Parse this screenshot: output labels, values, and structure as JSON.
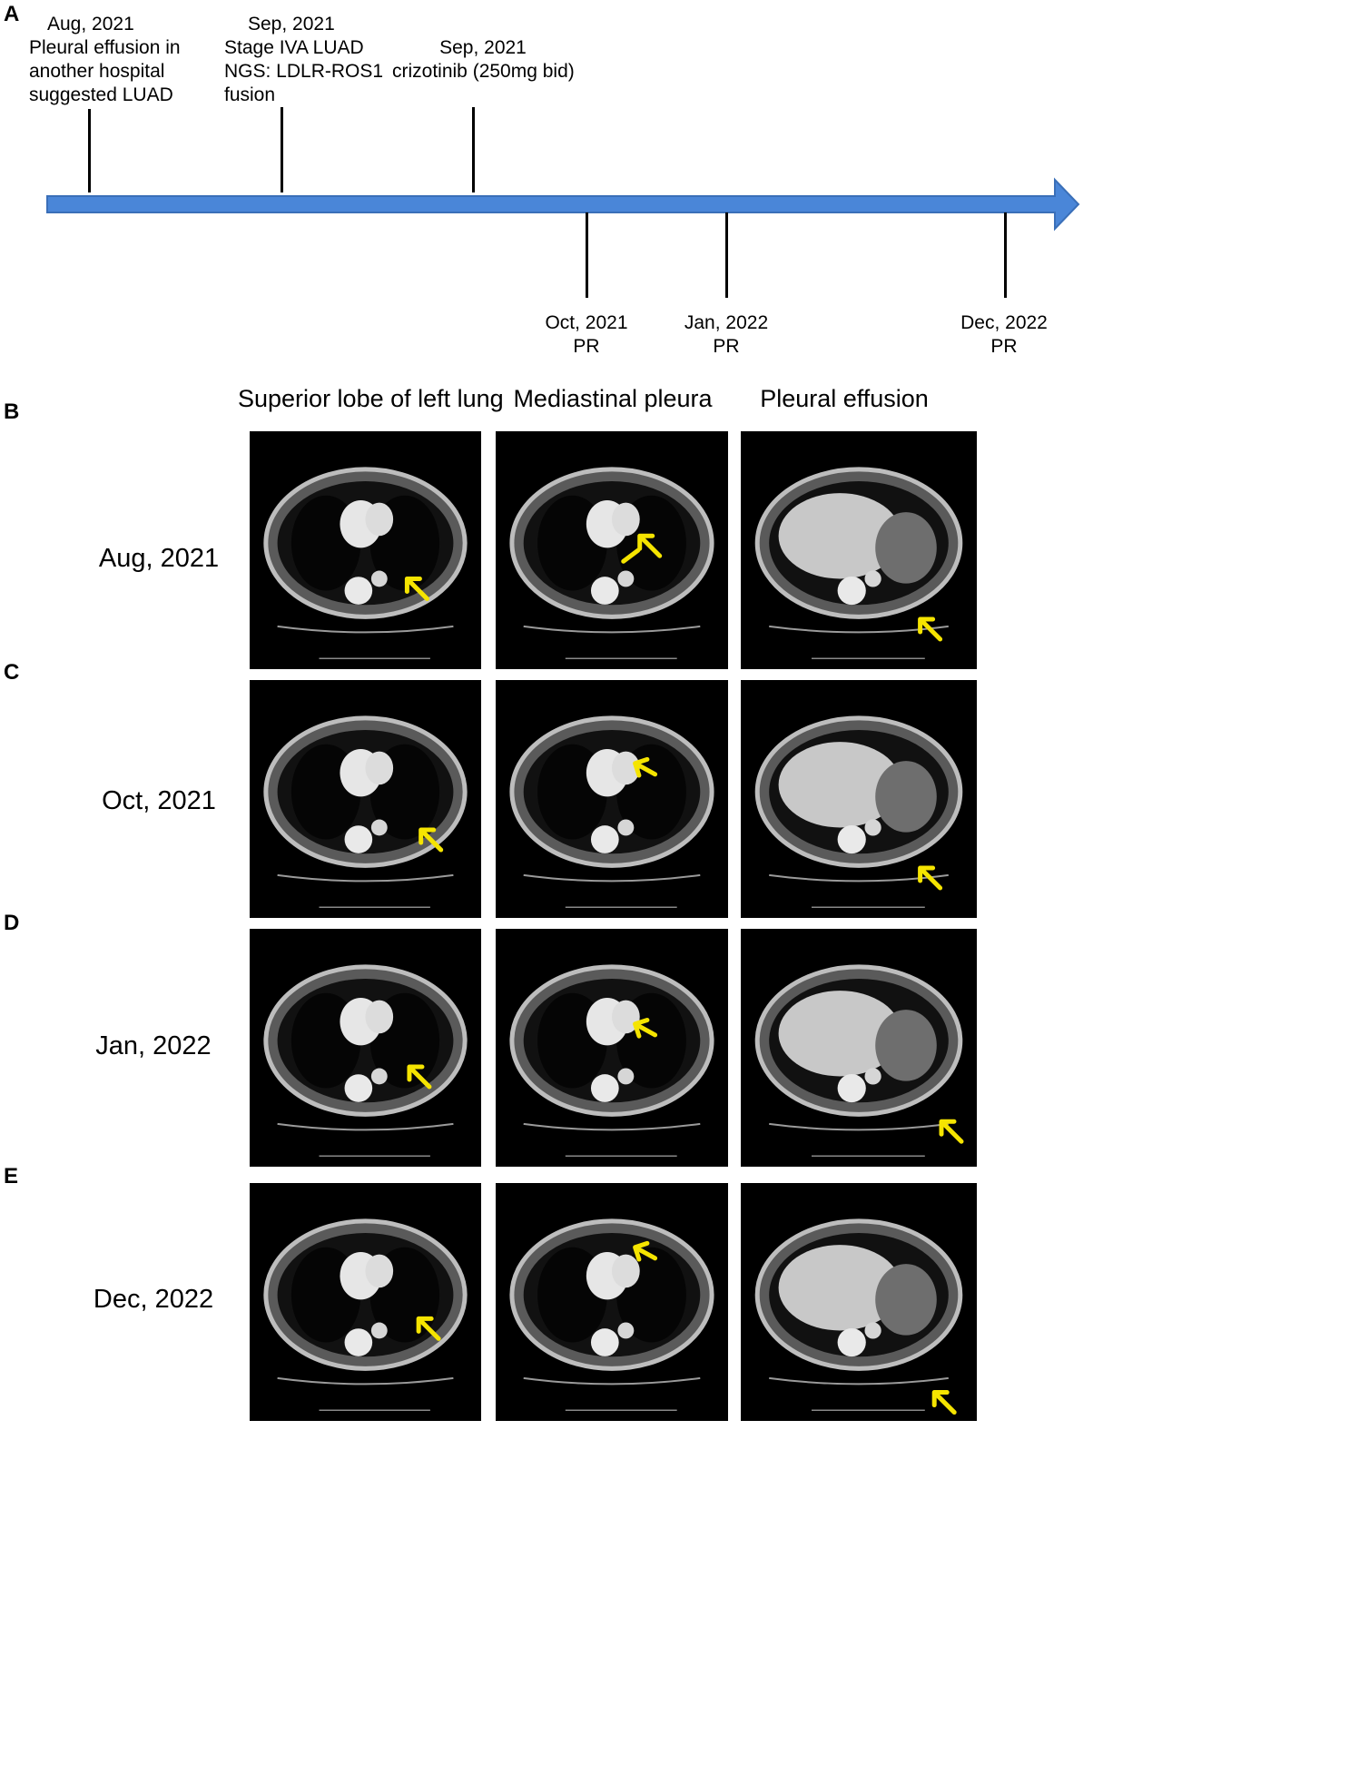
{
  "panels": {
    "A": "A",
    "B": "B",
    "C": "C",
    "D": "D",
    "E": "E"
  },
  "timeline": {
    "above": [
      {
        "lines": [
          "Aug, 2021",
          "Pleural effusion in",
          "another hospital",
          "suggested LUAD"
        ]
      },
      {
        "lines": [
          "Sep, 2021",
          "Stage IVA LUAD",
          "NGS: LDLR-ROS1",
          "fusion"
        ]
      },
      {
        "lines": [
          "Sep, 2021",
          "crizotinib (250mg bid)"
        ]
      }
    ],
    "below": [
      {
        "date": "Oct, 2021",
        "response": "PR"
      },
      {
        "date": "Jan, 2022",
        "response": "PR"
      },
      {
        "date": "Dec, 2022",
        "response": "PR"
      }
    ],
    "arrow_color": "#4a86d8"
  },
  "columns": [
    "Superior lobe of left lung",
    "Mediastinal pleura",
    "Pleural effusion"
  ],
  "rows": [
    "Aug, 2021",
    "Oct, 2021",
    "Jan, 2022",
    "Dec, 2022"
  ],
  "scan_marker_color": "#f5e400"
}
